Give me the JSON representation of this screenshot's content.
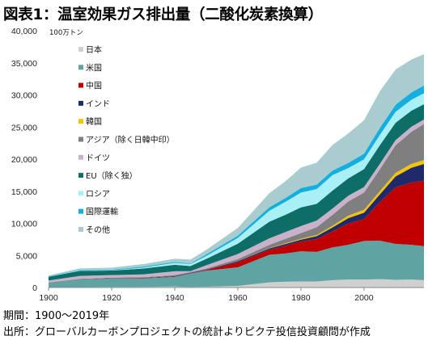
{
  "title": "図表1：温室効果ガス排出量（二酸化炭素換算）",
  "notes": {
    "period": "期間：1900～2019年",
    "source": "出所：グローバルカーボンプロジェクトの統計よりピクテ投信投資顧問が作成"
  },
  "chart_data": {
    "type": "area",
    "stacked": true,
    "unit_label": "100万トン",
    "ylim": [
      0,
      40000
    ],
    "yticks": [
      0,
      5000,
      10000,
      15000,
      20000,
      25000,
      30000,
      35000,
      40000
    ],
    "ytick_labels": [
      "0",
      "5,000",
      "10,000",
      "15,000",
      "20,000",
      "25,000",
      "30,000",
      "35,000",
      "40,000"
    ],
    "xlim": [
      1900,
      2019
    ],
    "xticks": [
      1900,
      1920,
      1940,
      1960,
      1980,
      2000
    ],
    "xtick_labels": [
      "1900",
      "1920",
      "1940",
      "1960",
      "1980",
      "2000"
    ],
    "legend_position": "upper-left",
    "x": [
      1900,
      1910,
      1920,
      1930,
      1940,
      1945,
      1950,
      1960,
      1970,
      1975,
      1980,
      1985,
      1990,
      1995,
      2000,
      2005,
      2010,
      2015,
      2019
    ],
    "series": [
      {
        "name": "日本",
        "color": "#d0d0d0",
        "values": [
          30,
          60,
          80,
          100,
          150,
          80,
          120,
          250,
          800,
          900,
          950,
          950,
          1150,
          1250,
          1250,
          1300,
          1200,
          1250,
          1150
        ]
      },
      {
        "name": "米国",
        "color": "#5fa3a3",
        "values": [
          700,
          1200,
          1300,
          1300,
          1500,
          2100,
          2500,
          2900,
          4300,
          4400,
          4700,
          4600,
          5100,
          5400,
          6000,
          6000,
          5600,
          5400,
          5300
        ]
      },
      {
        "name": "中国",
        "color": "#c00000",
        "values": [
          10,
          20,
          30,
          40,
          50,
          40,
          80,
          800,
          800,
          1200,
          1500,
          2000,
          2500,
          3300,
          3400,
          6000,
          8800,
          9700,
          10200
        ]
      },
      {
        "name": "インド",
        "color": "#1f2a6b",
        "values": [
          20,
          30,
          50,
          60,
          80,
          80,
          100,
          150,
          200,
          260,
          300,
          450,
          600,
          850,
          1000,
          1200,
          1700,
          2300,
          2600
        ]
      },
      {
        "name": "韓国",
        "color": "#f5c400",
        "values": [
          0,
          0,
          0,
          0,
          0,
          0,
          10,
          20,
          50,
          100,
          130,
          180,
          250,
          400,
          450,
          500,
          560,
          600,
          610
        ]
      },
      {
        "name": "アジア（除く日韓中印）",
        "color": "#7f7f7f",
        "values": [
          30,
          50,
          80,
          100,
          150,
          100,
          150,
          300,
          500,
          700,
          900,
          1200,
          1700,
          2200,
          2700,
          3400,
          4300,
          5000,
          5600
        ]
      },
      {
        "name": "ドイツ",
        "color": "#c9b2c9",
        "values": [
          300,
          450,
          400,
          450,
          600,
          150,
          500,
          800,
          1000,
          1050,
          1100,
          1050,
          1000,
          900,
          850,
          850,
          800,
          780,
          700
        ]
      },
      {
        "name": "EU（除く独）",
        "color": "#0d6e68",
        "values": [
          600,
          800,
          700,
          900,
          1000,
          800,
          1000,
          1600,
          2600,
          2700,
          2900,
          2600,
          2800,
          2700,
          2800,
          2900,
          2700,
          2500,
          2400
        ]
      },
      {
        "name": "ロシア",
        "color": "#a8f0f5",
        "values": [
          50,
          100,
          50,
          150,
          300,
          300,
          450,
          900,
          1700,
          2000,
          2300,
          2300,
          2400,
          1600,
          1500,
          1600,
          1700,
          1700,
          1700
        ]
      },
      {
        "name": "国際運輸",
        "color": "#16aede",
        "values": [
          50,
          80,
          100,
          150,
          150,
          100,
          250,
          350,
          550,
          600,
          700,
          700,
          700,
          800,
          900,
          1100,
          1100,
          1150,
          1200
        ]
      },
      {
        "name": "その他",
        "color": "#a9cdcf",
        "values": [
          100,
          200,
          300,
          400,
          500,
          600,
          700,
          1200,
          2200,
          2600,
          3200,
          3400,
          4000,
          4600,
          5200,
          5700,
          5500,
          5100,
          4900
        ]
      }
    ]
  }
}
